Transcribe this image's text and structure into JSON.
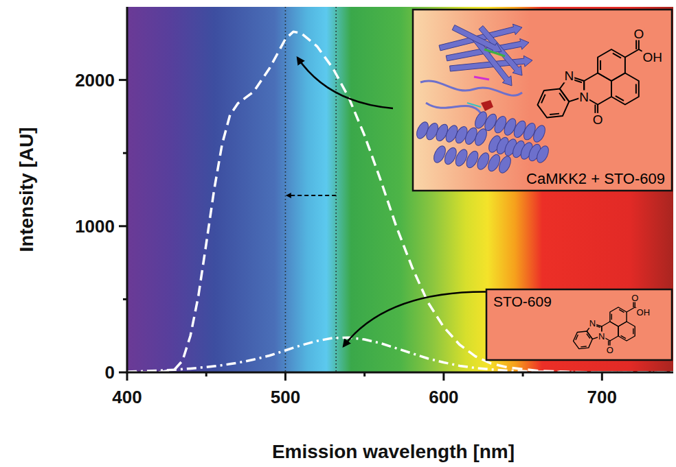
{
  "chart_data": {
    "type": "line",
    "x_label": "Emission wavelength [nm]",
    "y_label": "Intensity [AU]",
    "xlim": [
      400,
      745
    ],
    "ylim": [
      0,
      2500
    ],
    "xticks": [
      400,
      500,
      600,
      700
    ],
    "yticks": [
      0,
      1000,
      2000
    ],
    "grid": false,
    "x": [
      400,
      410,
      420,
      430,
      435,
      440,
      445,
      450,
      455,
      460,
      465,
      470,
      475,
      480,
      490,
      500,
      505,
      510,
      520,
      530,
      540,
      550,
      560,
      570,
      580,
      590,
      600,
      610,
      620,
      630,
      640,
      660,
      680,
      700,
      720,
      745
    ],
    "series": [
      {
        "name": "CaMKK2 + STO-609",
        "color": "#ffffff",
        "line_style": "dashed",
        "values": [
          0,
          0,
          0,
          20,
          80,
          250,
          520,
          880,
          1250,
          1560,
          1760,
          1840,
          1880,
          1920,
          2080,
          2280,
          2330,
          2320,
          2230,
          2080,
          1880,
          1620,
          1320,
          1000,
          720,
          480,
          310,
          190,
          110,
          60,
          35,
          10,
          3,
          0,
          0,
          0
        ]
      },
      {
        "name": "STO-609",
        "color": "#ffffff",
        "line_style": "dashdot",
        "values": [
          5,
          8,
          12,
          18,
          22,
          26,
          31,
          36,
          42,
          49,
          57,
          66,
          76,
          88,
          115,
          150,
          168,
          185,
          215,
          235,
          238,
          225,
          200,
          165,
          130,
          95,
          68,
          45,
          30,
          20,
          12,
          5,
          2,
          0,
          0,
          0
        ]
      }
    ],
    "vlines": [
      500,
      532
    ],
    "shift_arrow": {
      "x_from": 532,
      "x_to": 500,
      "y": 1210
    },
    "annotations": [
      "N",
      "N",
      "O",
      "O",
      "OH"
    ]
  }
}
